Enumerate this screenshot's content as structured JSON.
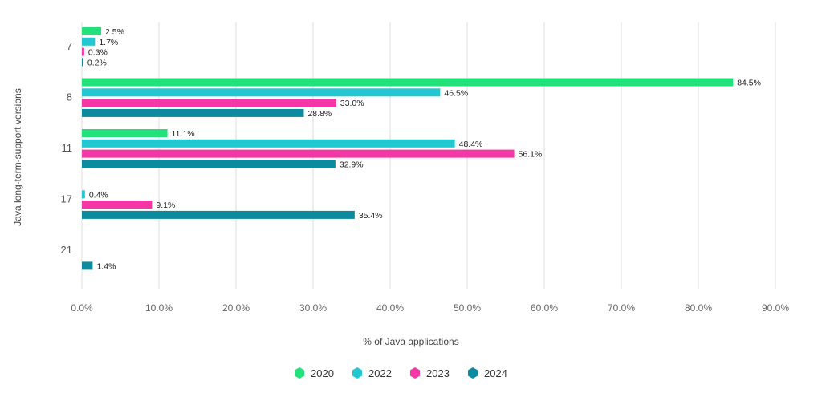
{
  "chart_data": {
    "type": "bar",
    "orientation": "horizontal",
    "categories": [
      "7",
      "8",
      "11",
      "17",
      "21"
    ],
    "series": [
      {
        "name": "2020",
        "color": "#22e07a",
        "values": [
          2.5,
          84.5,
          11.1,
          null,
          null
        ],
        "labels": [
          "2.5%",
          "84.5%",
          "11.1%",
          "",
          ""
        ]
      },
      {
        "name": "2022",
        "color": "#22c7cf",
        "values": [
          1.7,
          46.5,
          48.4,
          0.4,
          null
        ],
        "labels": [
          "1.7%",
          "46.5%",
          "48.4%",
          "0.4%",
          ""
        ]
      },
      {
        "name": "2023",
        "color": "#f536a5",
        "values": [
          0.3,
          33.0,
          56.1,
          9.1,
          null
        ],
        "labels": [
          "0.3%",
          "33.0%",
          "56.1%",
          "9.1%",
          ""
        ]
      },
      {
        "name": "2024",
        "color": "#0c8a9e",
        "values": [
          0.2,
          28.8,
          32.9,
          35.4,
          1.4
        ],
        "labels": [
          "0.2%",
          "28.8%",
          "32.9%",
          "35.4%",
          "1.4%"
        ]
      }
    ],
    "xlabel": "% of Java applications",
    "ylabel": "Java long-term-support versions",
    "xlim": [
      0,
      90
    ],
    "xticks": [
      0,
      10,
      20,
      30,
      40,
      50,
      60,
      70,
      80,
      90
    ],
    "xtick_labels": [
      "0.0%",
      "10.0%",
      "20.0%",
      "30.0%",
      "40.0%",
      "50.0%",
      "60.0%",
      "70.0%",
      "80.0%",
      "90.0%"
    ],
    "grid": "vertical",
    "legend": "bottom-center",
    "legend_marker": "hexagon"
  }
}
